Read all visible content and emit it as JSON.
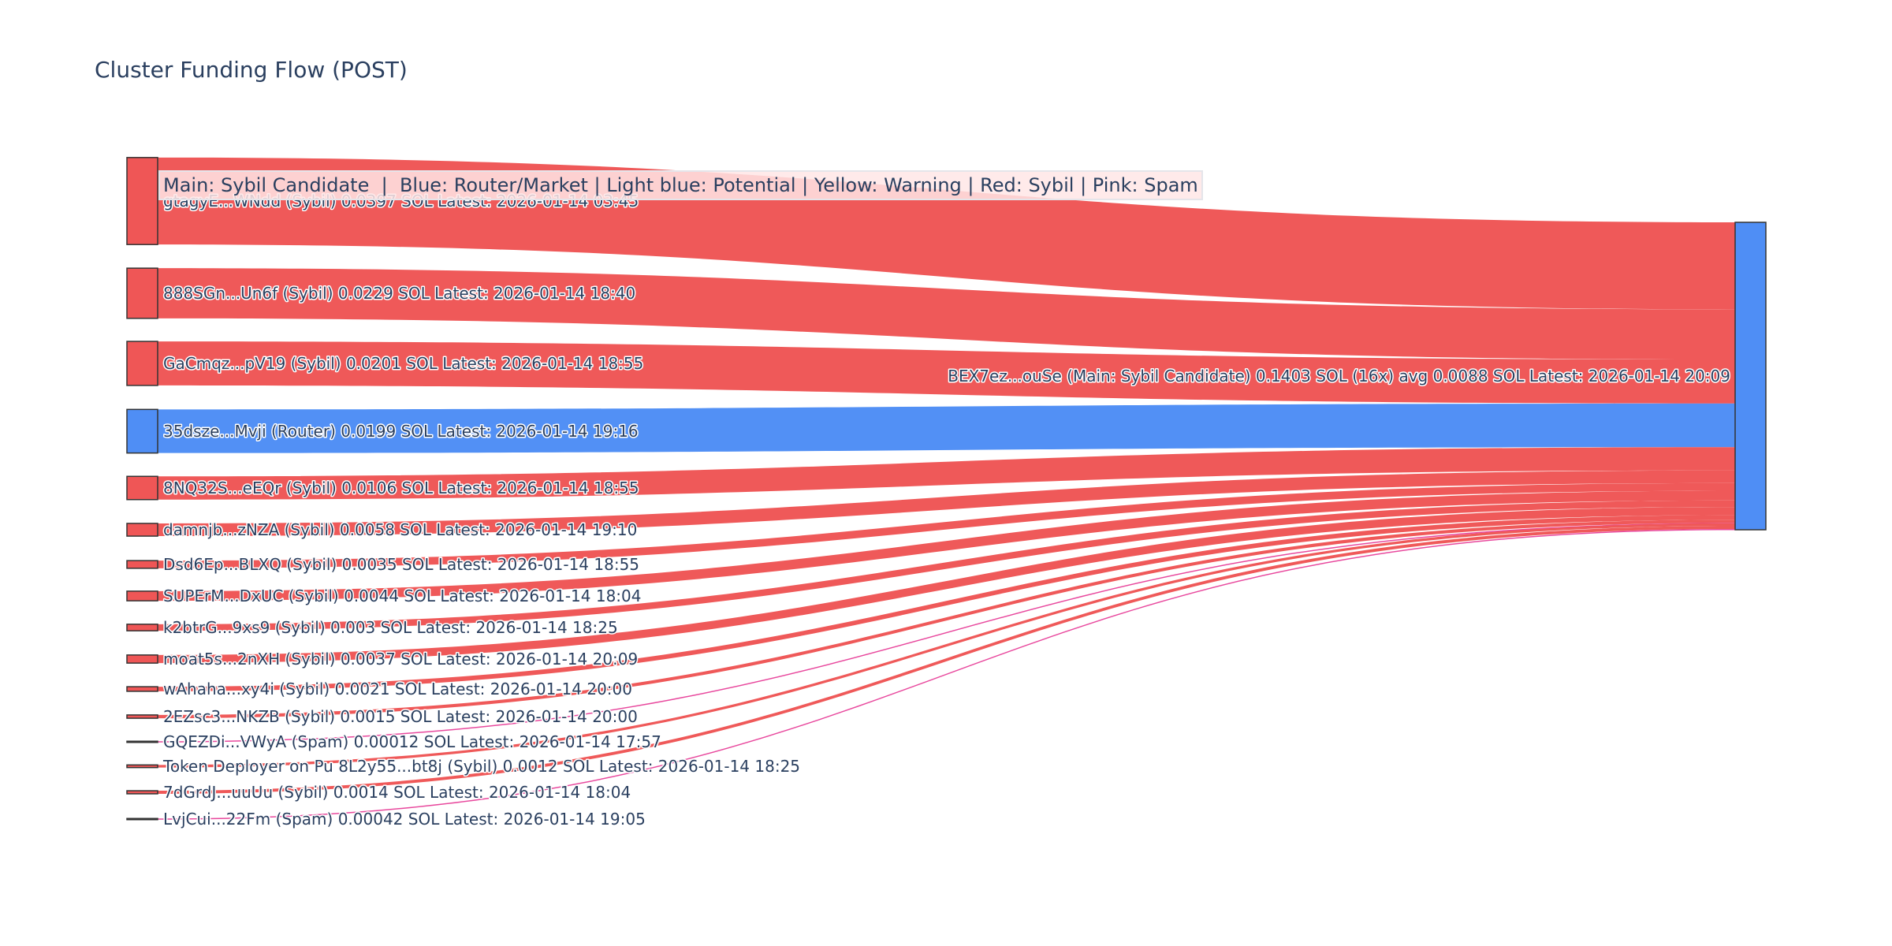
{
  "title": "Cluster Funding Flow (POST)",
  "legend_text": "Main: Sybil Candidate  |  Blue: Router/Market | Light blue: Potential | Yellow: Warning | Red: Sybil | Pink: Spam",
  "colors": {
    "sybil": "#ef5656",
    "router": "#4f8ef5",
    "spam": "#e8449b",
    "main": "#4f8ef5"
  },
  "chart_data": {
    "type": "sankey",
    "title": "Cluster Funding Flow (POST)",
    "target": {
      "label": "BEX7ez...ouSe (Main: Sybil Candidate) 0.1403 SOL (16x) avg 0.0088 SOL Latest: 2026-01-14 20:09",
      "value": 0.1403,
      "kind": "main"
    },
    "sources": [
      {
        "label": "gtagyE...WNdd (Sybil) 0.0397 SOL Latest: 2026-01-14 03:45",
        "value": 0.0397,
        "kind": "sybil"
      },
      {
        "label": "888SGn...Un6f (Sybil) 0.0229 SOL Latest: 2026-01-14 18:40",
        "value": 0.0229,
        "kind": "sybil"
      },
      {
        "label": "GaCmqz...pV19 (Sybil) 0.0201 SOL Latest: 2026-01-14 18:55",
        "value": 0.0201,
        "kind": "sybil"
      },
      {
        "label": "35dsze...Mvji (Router) 0.0199 SOL Latest: 2026-01-14 19:16",
        "value": 0.0199,
        "kind": "router"
      },
      {
        "label": "8NQ32S...eEQr (Sybil) 0.0106 SOL Latest: 2026-01-14 18:55",
        "value": 0.0106,
        "kind": "sybil"
      },
      {
        "label": "damnjb...zNZA (Sybil) 0.0058 SOL Latest: 2026-01-14 19:10",
        "value": 0.0058,
        "kind": "sybil"
      },
      {
        "label": "Dsd6Ep...BLXQ (Sybil) 0.0035 SOL Latest: 2026-01-14 18:55",
        "value": 0.0035,
        "kind": "sybil"
      },
      {
        "label": "SUPErM...DxUC (Sybil) 0.0044 SOL Latest: 2026-01-14 18:04",
        "value": 0.0044,
        "kind": "sybil"
      },
      {
        "label": "k2btrG...9xs9 (Sybil) 0.003 SOL Latest: 2026-01-14 18:25",
        "value": 0.003,
        "kind": "sybil"
      },
      {
        "label": "moat5s...2nXH (Sybil) 0.0037 SOL Latest: 2026-01-14 20:09",
        "value": 0.0037,
        "kind": "sybil"
      },
      {
        "label": "wAhaha...xy4i (Sybil) 0.0021 SOL Latest: 2026-01-14 20:00",
        "value": 0.0021,
        "kind": "sybil"
      },
      {
        "label": "2EZsc3...NKZB (Sybil) 0.0015 SOL Latest: 2026-01-14 20:00",
        "value": 0.0015,
        "kind": "sybil"
      },
      {
        "label": "GQEZDi...VWyA (Spam) 0.00012 SOL Latest: 2026-01-14 17:57",
        "value": 0.00012,
        "kind": "spam"
      },
      {
        "label": "Token Deployer on Pu 8L2y55...bt8j (Sybil) 0.0012 SOL Latest: 2026-01-14 18:25",
        "value": 0.0012,
        "kind": "sybil"
      },
      {
        "label": "7dGrdJ...uuUu (Sybil) 0.0014 SOL Latest: 2026-01-14 18:04",
        "value": 0.0014,
        "kind": "sybil"
      },
      {
        "label": "LvjCui...22Fm (Spam) 0.00042 SOL Latest: 2026-01-14 19:05",
        "value": 0.00042,
        "kind": "spam"
      }
    ]
  }
}
